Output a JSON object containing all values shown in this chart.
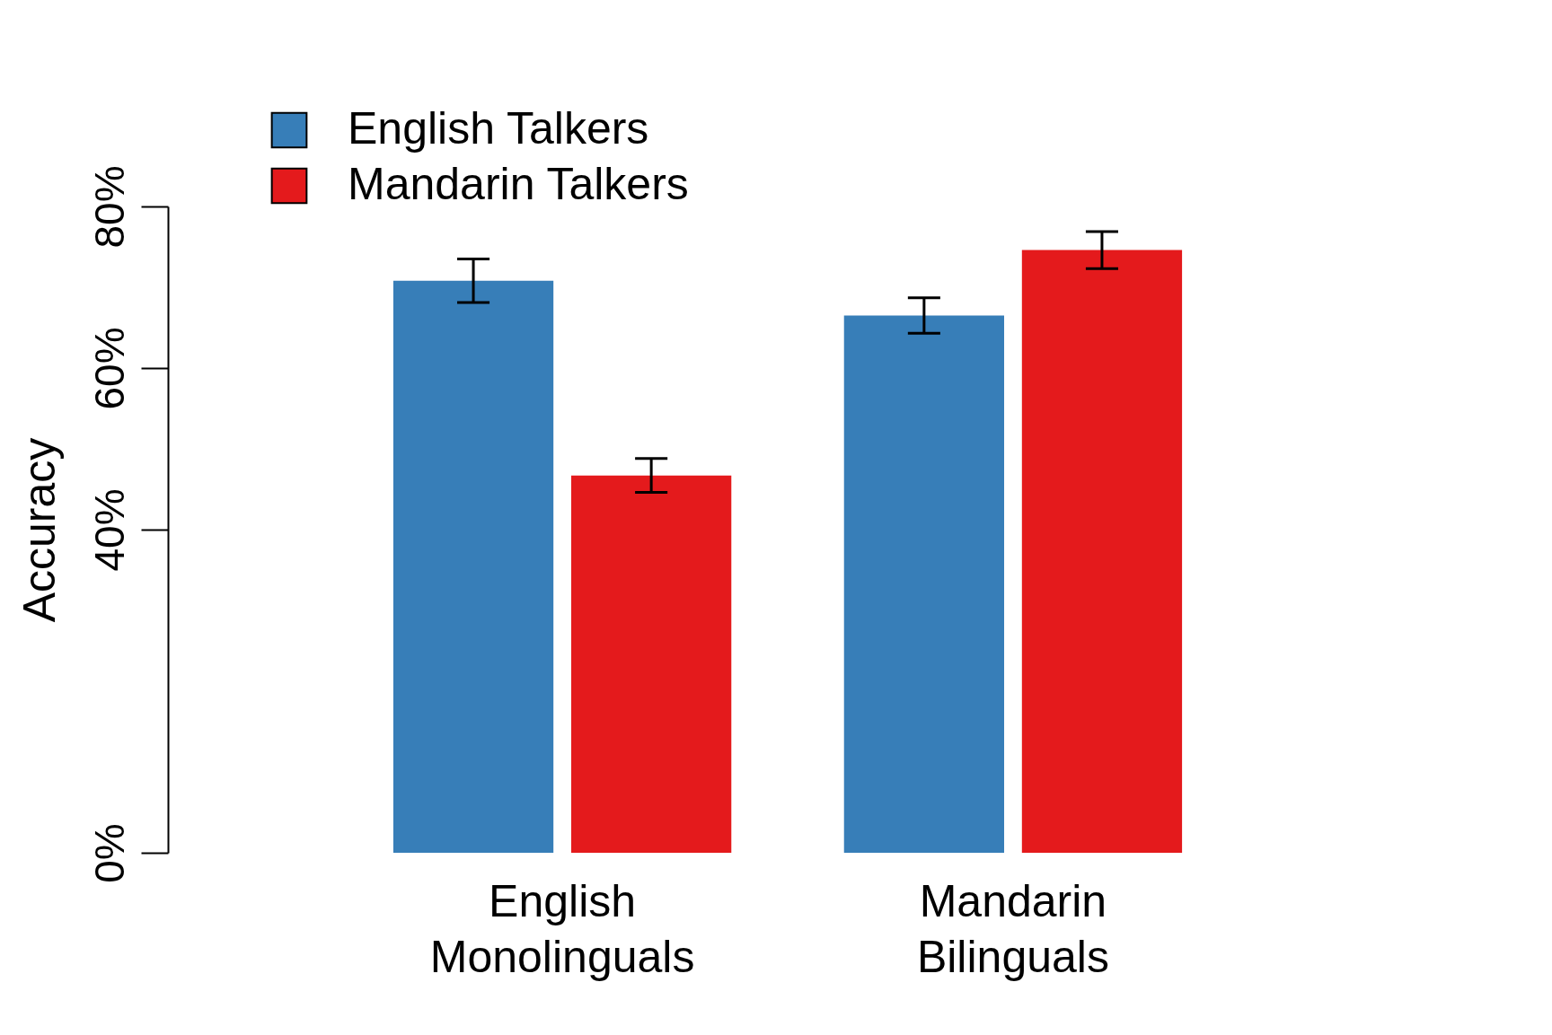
{
  "chart_data": {
    "type": "bar",
    "ylabel": "Accuracy",
    "categories": [
      "English Monolinguals",
      "Mandarin Bilinguals"
    ],
    "series": [
      {
        "name": "English Talkers",
        "color": "#377eb8",
        "values": [
          70.8,
          66.5
        ],
        "errors": [
          2.7,
          2.2
        ]
      },
      {
        "name": "Mandarin Talkers",
        "color": "#e41a1c",
        "values": [
          46.7,
          74.6
        ],
        "errors": [
          2.1,
          2.3
        ]
      }
    ],
    "ylim": [
      0,
      80
    ],
    "yticks": [
      {
        "value": 0,
        "label": "0%"
      },
      {
        "value": 40,
        "label": "40%"
      },
      {
        "value": 60,
        "label": "60%"
      },
      {
        "value": 80,
        "label": "80%"
      }
    ],
    "legend": "top left",
    "grid": false
  }
}
